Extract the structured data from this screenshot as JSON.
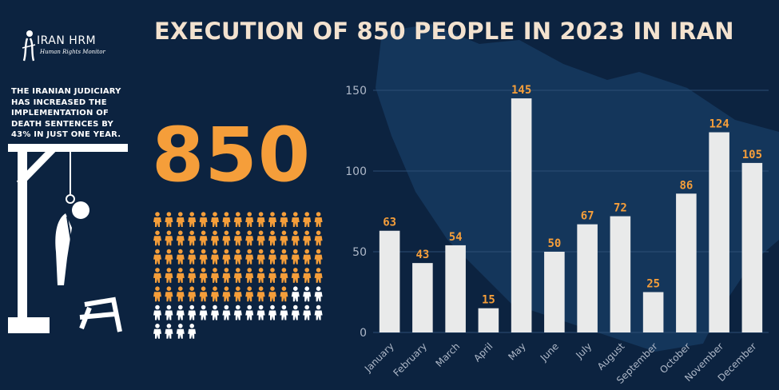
{
  "brand": {
    "name": "IRAN HRM",
    "subtitle": "Human Rights Monitor"
  },
  "headline": "EXECUTION OF 850 PEOPLE IN 2023 IN IRAN",
  "intro_text": "THE IRANIAN JUDICIARY HAS INCREASED THE IMPLEMENTATION OF DEATH SENTENCES BY 43% IN JUST ONE YEAR.",
  "total_executions": "850",
  "pictogram": {
    "columns": 15,
    "total_icons": 94,
    "highlighted_icons": 72
  },
  "colors": {
    "background": "#0c2340",
    "map": "#163960",
    "accent": "#f59e3a",
    "title": "#f3e2cf",
    "bar": "#e9eaea",
    "axis_text": "#aeb8c8",
    "icon_white": "#ffffff"
  },
  "icons": [
    "iran-hrm-logo-icon",
    "gallows-icon",
    "person-icon"
  ],
  "chart_data": {
    "type": "bar",
    "categories": [
      "January",
      "February",
      "March",
      "April",
      "May",
      "June",
      "July",
      "August",
      "September",
      "October",
      "November",
      "December"
    ],
    "values": [
      63,
      43,
      54,
      15,
      145,
      50,
      67,
      72,
      25,
      86,
      124,
      105
    ],
    "yticks": [
      0,
      50,
      100,
      150
    ],
    "ylim": [
      0,
      150
    ],
    "data_labels": true,
    "grid": true
  }
}
